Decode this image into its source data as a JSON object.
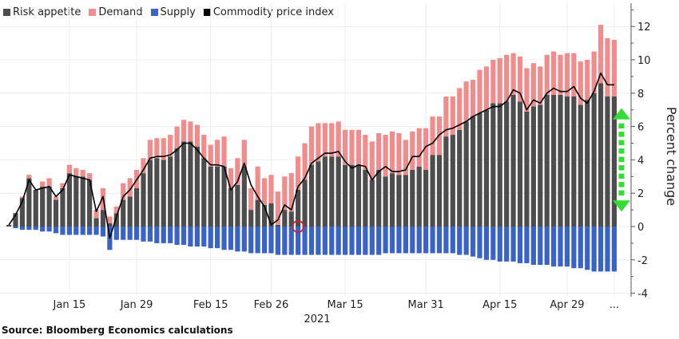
{
  "chart_data": {
    "type": "bar",
    "subtype": "stacked bar with line overlay",
    "title": "",
    "xlabel": "2021",
    "ylabel": "Percent change",
    "ylim": [
      -4,
      13
    ],
    "yticks": [
      -4,
      -2,
      0,
      2,
      4,
      6,
      8,
      10,
      12
    ],
    "xticks": [
      "Jan 15",
      "Jan 29",
      "Feb 15",
      "Feb 26",
      "Mar 15",
      "Mar 31",
      "Apr 15",
      "Apr 29",
      "..."
    ],
    "xtick_bar_index": [
      9,
      19,
      30,
      39,
      50,
      62,
      73,
      83,
      90
    ],
    "grid": true,
    "legend_position": "top-left",
    "legend": [
      {
        "name": "Risk appetite",
        "color": "#4d4d4d"
      },
      {
        "name": "Demand",
        "color": "#f08c8c"
      },
      {
        "name": "Supply",
        "color": "#3a63c8"
      },
      {
        "name": "Commodity price index",
        "color": "#000000"
      }
    ],
    "series": [
      {
        "name": "Risk appetite",
        "color": "#4d4d4d",
        "values": [
          0.1,
          0.8,
          1.7,
          2.9,
          2.2,
          2.4,
          2.4,
          1.6,
          2.3,
          3.2,
          3.0,
          3.0,
          2.8,
          0.5,
          1.0,
          0.2,
          0.8,
          1.6,
          1.8,
          2.3,
          3.2,
          4.0,
          4.1,
          4.0,
          4.2,
          4.7,
          5.1,
          5.1,
          4.8,
          4.1,
          3.6,
          3.6,
          3.6,
          2.3,
          2.5,
          3.6,
          1.0,
          1.6,
          1.3,
          1.4,
          0.1,
          1.0,
          0.9,
          2.2,
          2.8,
          3.7,
          3.9,
          4.2,
          4.2,
          4.2,
          3.7,
          3.7,
          3.7,
          3.4,
          2.8,
          3.4,
          3.0,
          3.2,
          3.1,
          3.1,
          3.4,
          3.6,
          3.4,
          4.3,
          4.3,
          5.4,
          5.5,
          5.8,
          6.3,
          6.6,
          6.8,
          7.0,
          7.4,
          7.4,
          7.5,
          7.9,
          7.5,
          6.9,
          7.2,
          7.3,
          7.9,
          7.9,
          7.9,
          7.8,
          7.8,
          7.3,
          7.6,
          8.0,
          8.6,
          7.8,
          7.8
        ]
      },
      {
        "name": "Demand",
        "color": "#f08c8c",
        "values": [
          0.0,
          0.0,
          0.1,
          0.2,
          0.0,
          0.3,
          0.5,
          0.2,
          0.3,
          0.5,
          0.5,
          0.4,
          0.4,
          0.5,
          1.3,
          0.4,
          0.4,
          1.0,
          1.1,
          1.1,
          0.9,
          1.2,
          1.2,
          1.3,
          1.3,
          1.3,
          1.3,
          1.2,
          1.3,
          1.4,
          1.3,
          1.6,
          1.8,
          1.2,
          1.6,
          1.6,
          1.3,
          2.0,
          1.6,
          1.7,
          2.0,
          2.0,
          2.3,
          2.0,
          2.2,
          2.3,
          2.3,
          2.0,
          2.0,
          2.1,
          2.1,
          2.1,
          2.1,
          2.1,
          2.3,
          2.2,
          2.5,
          2.5,
          2.5,
          2.1,
          2.3,
          2.3,
          2.5,
          2.3,
          2.3,
          2.4,
          2.3,
          2.5,
          2.4,
          2.2,
          2.6,
          2.6,
          2.6,
          2.7,
          2.8,
          2.5,
          2.7,
          2.6,
          2.6,
          2.3,
          2.4,
          2.6,
          2.4,
          2.6,
          2.6,
          2.6,
          2.4,
          2.5,
          3.5,
          3.5,
          3.4
        ]
      },
      {
        "name": "Supply",
        "color": "#3a63c8",
        "values": [
          0.0,
          -0.1,
          -0.2,
          -0.2,
          -0.2,
          -0.3,
          -0.3,
          -0.4,
          -0.5,
          -0.5,
          -0.5,
          -0.5,
          -0.5,
          -0.5,
          -0.6,
          -1.4,
          -0.8,
          -0.8,
          -0.8,
          -0.8,
          -0.9,
          -0.9,
          -1.0,
          -1.0,
          -1.0,
          -1.1,
          -1.1,
          -1.2,
          -1.2,
          -1.2,
          -1.3,
          -1.3,
          -1.4,
          -1.4,
          -1.5,
          -1.5,
          -1.6,
          -1.6,
          -1.6,
          -1.6,
          -1.7,
          -1.7,
          -1.7,
          -1.7,
          -1.7,
          -1.7,
          -1.7,
          -1.7,
          -1.7,
          -1.7,
          -1.7,
          -1.7,
          -1.7,
          -1.7,
          -1.7,
          -1.7,
          -1.6,
          -1.6,
          -1.6,
          -1.6,
          -1.6,
          -1.6,
          -1.6,
          -1.6,
          -1.6,
          -1.6,
          -1.6,
          -1.7,
          -1.7,
          -1.8,
          -1.9,
          -2.0,
          -2.0,
          -2.1,
          -2.1,
          -2.1,
          -2.2,
          -2.2,
          -2.3,
          -2.3,
          -2.3,
          -2.4,
          -2.4,
          -2.4,
          -2.5,
          -2.5,
          -2.6,
          -2.7,
          -2.7,
          -2.7,
          -2.7
        ]
      },
      {
        "name": "Commodity price index",
        "color": "#000000",
        "type": "line",
        "values": [
          0.1,
          0.7,
          1.5,
          2.8,
          2.2,
          2.3,
          2.4,
          1.8,
          2.2,
          3.1,
          3.0,
          2.9,
          2.8,
          0.9,
          1.8,
          -0.7,
          0.6,
          1.8,
          2.2,
          2.8,
          3.4,
          4.1,
          4.2,
          4.2,
          4.3,
          4.6,
          5.0,
          5.0,
          4.6,
          4.1,
          3.7,
          3.7,
          3.6,
          2.2,
          2.7,
          3.8,
          2.5,
          1.8,
          1.2,
          0.1,
          0.4,
          1.3,
          1.0,
          2.4,
          2.9,
          3.8,
          4.1,
          4.4,
          4.4,
          4.5,
          3.9,
          3.5,
          3.7,
          3.6,
          2.8,
          3.3,
          3.6,
          3.3,
          3.3,
          3.4,
          4.2,
          4.2,
          4.8,
          5.0,
          5.5,
          5.8,
          5.9,
          6.1,
          6.3,
          6.6,
          6.8,
          7.0,
          7.2,
          7.2,
          7.5,
          8.2,
          8.0,
          7.0,
          7.6,
          7.4,
          8.0,
          8.3,
          8.1,
          8.1,
          8.4,
          7.7,
          7.4,
          8.1,
          9.2,
          8.5,
          8.5
        ]
      }
    ],
    "annotations": [
      {
        "type": "circle",
        "color": "#cc2030",
        "at_bar_index": 43,
        "value": 0
      },
      {
        "type": "double-arrow",
        "color": "#33dd33",
        "from_value": 0.9,
        "to_value": 7.1,
        "style": "dashed"
      }
    ]
  },
  "legend": {
    "items": [
      {
        "label": "Risk appetite",
        "color": "#4d4d4d"
      },
      {
        "label": "Demand",
        "color": "#f08c8c"
      },
      {
        "label": "Supply",
        "color": "#3a63c8"
      },
      {
        "label": "Commodity price index",
        "color": "#000000"
      }
    ]
  },
  "footer": {
    "source": "Source: Bloomberg Economics calculations"
  }
}
